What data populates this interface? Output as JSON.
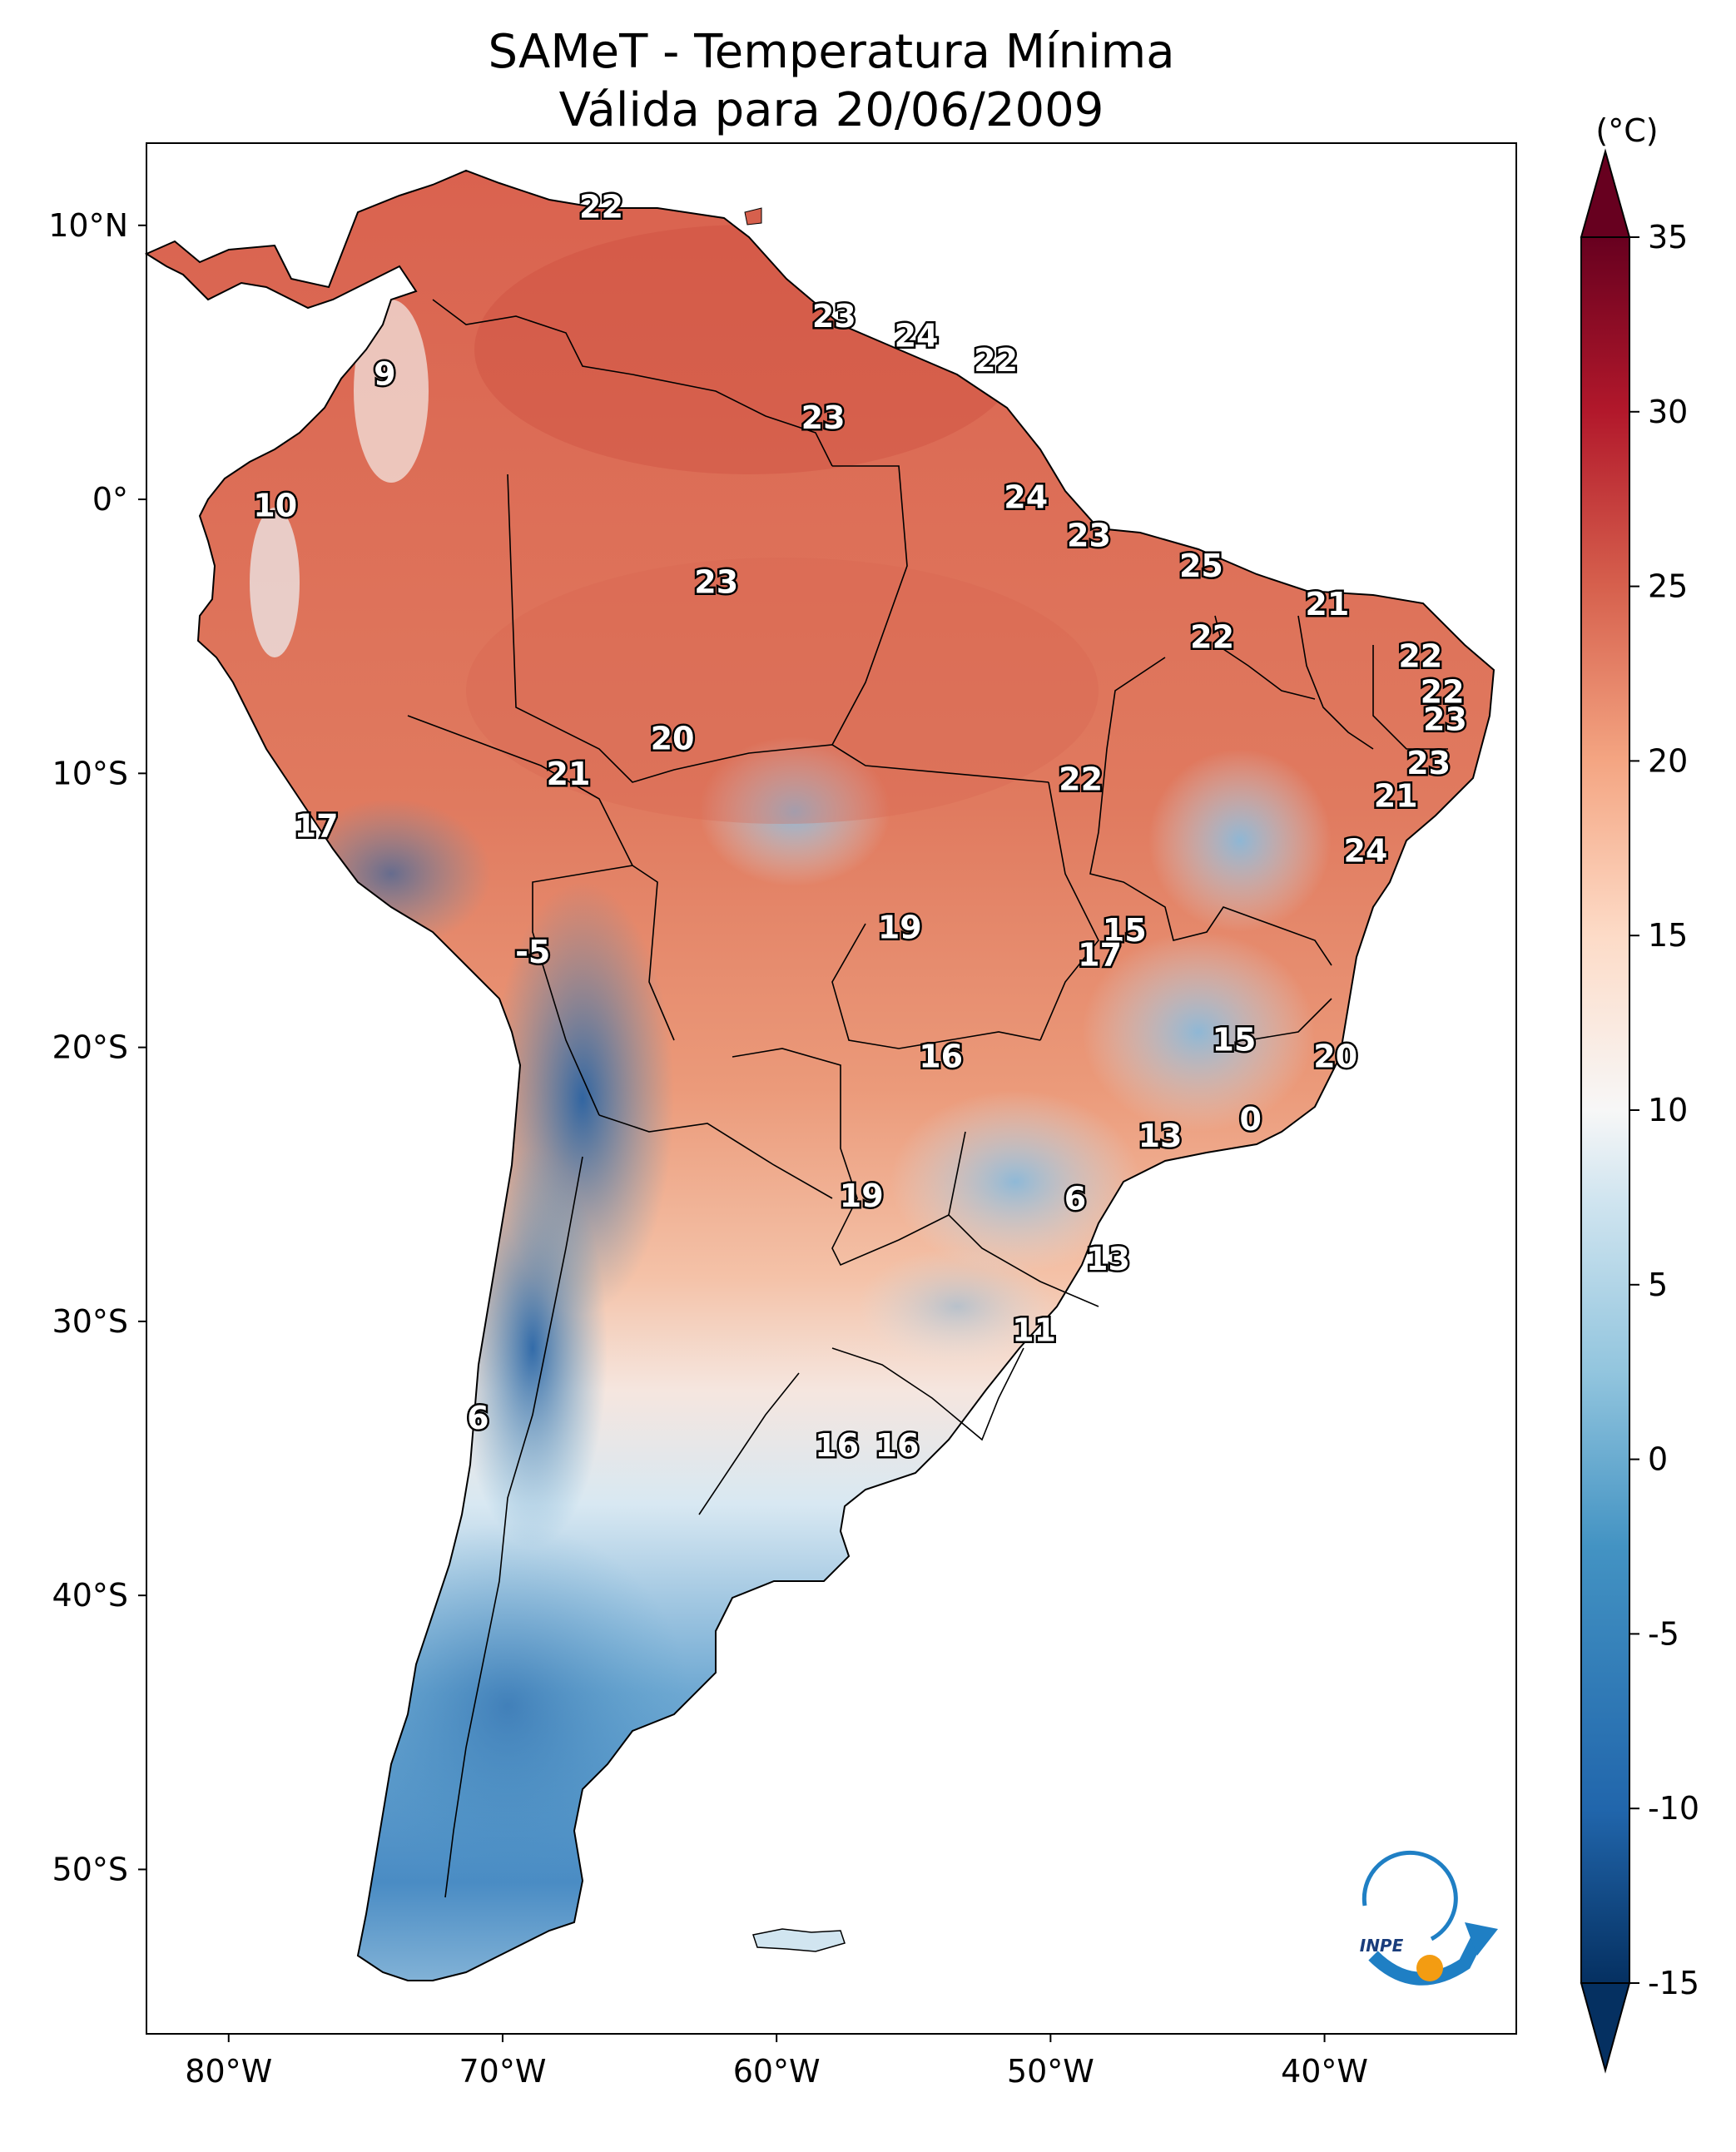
{
  "title": {
    "line1": "SAMeT - Temperatura Mínima",
    "line2": "Válida para 20/06/2009"
  },
  "map": {
    "lon_range": [
      -83,
      -33
    ],
    "lat_range": [
      -56,
      13
    ],
    "lat_ticks": [
      "10°N",
      "0°",
      "10°S",
      "20°S",
      "30°S",
      "40°S",
      "50°S"
    ],
    "lon_ticks": [
      "80°W",
      "70°W",
      "60°W",
      "50°W",
      "40°W"
    ],
    "labels": [
      {
        "text": "22",
        "lon": -66.4,
        "lat": 10.6
      },
      {
        "text": "9",
        "lon": -74.3,
        "lat": 4.5
      },
      {
        "text": "23",
        "lon": -57.9,
        "lat": 6.6
      },
      {
        "text": "24",
        "lon": -54.9,
        "lat": 5.9
      },
      {
        "text": "22",
        "lon": -52.0,
        "lat": 5.0
      },
      {
        "text": "23",
        "lon": -58.3,
        "lat": 2.9
      },
      {
        "text": "10",
        "lon": -78.3,
        "lat": -0.3
      },
      {
        "text": "24",
        "lon": -50.9,
        "lat": 0.0
      },
      {
        "text": "23",
        "lon": -48.6,
        "lat": -1.4
      },
      {
        "text": "25",
        "lon": -44.5,
        "lat": -2.5
      },
      {
        "text": "23",
        "lon": -62.2,
        "lat": -3.1
      },
      {
        "text": "21",
        "lon": -39.9,
        "lat": -3.9
      },
      {
        "text": "22",
        "lon": -44.1,
        "lat": -5.1
      },
      {
        "text": "22",
        "lon": -36.5,
        "lat": -5.8
      },
      {
        "text": "22",
        "lon": -35.7,
        "lat": -7.1
      },
      {
        "text": "23",
        "lon": -35.6,
        "lat": -8.1
      },
      {
        "text": "20",
        "lon": -63.8,
        "lat": -8.8
      },
      {
        "text": "23",
        "lon": -36.2,
        "lat": -9.7
      },
      {
        "text": "21",
        "lon": -67.6,
        "lat": -10.1
      },
      {
        "text": "22",
        "lon": -48.9,
        "lat": -10.3
      },
      {
        "text": "21",
        "lon": -37.4,
        "lat": -10.9
      },
      {
        "text": "17",
        "lon": -76.8,
        "lat": -12.0
      },
      {
        "text": "24",
        "lon": -38.5,
        "lat": -12.9
      },
      {
        "text": "19",
        "lon": -55.5,
        "lat": -15.7
      },
      {
        "text": "15",
        "lon": -47.3,
        "lat": -15.8
      },
      {
        "text": "17",
        "lon": -48.2,
        "lat": -16.7
      },
      {
        "text": "-5",
        "lon": -68.9,
        "lat": -16.6
      },
      {
        "text": "15",
        "lon": -43.3,
        "lat": -19.8
      },
      {
        "text": "16",
        "lon": -54.0,
        "lat": -20.4
      },
      {
        "text": "20",
        "lon": -39.6,
        "lat": -20.4
      },
      {
        "text": "0",
        "lon": -42.7,
        "lat": -22.7
      },
      {
        "text": "13",
        "lon": -46.0,
        "lat": -23.3
      },
      {
        "text": "19",
        "lon": -56.9,
        "lat": -25.5
      },
      {
        "text": "6",
        "lon": -49.1,
        "lat": -25.6
      },
      {
        "text": "13",
        "lon": -47.9,
        "lat": -27.8
      },
      {
        "text": "11",
        "lon": -50.6,
        "lat": -30.4
      },
      {
        "text": "6",
        "lon": -70.9,
        "lat": -33.6
      },
      {
        "text": "16",
        "lon": -57.8,
        "lat": -34.6
      },
      {
        "text": "16",
        "lon": -55.6,
        "lat": -34.6
      }
    ],
    "logo_text": "INPE"
  },
  "colorbar": {
    "unit": "(°C)",
    "range": [
      -15,
      35
    ],
    "ticks": [
      "35",
      "30",
      "25",
      "20",
      "15",
      "10",
      "5",
      "0",
      "-5",
      "-10",
      "-15"
    ]
  }
}
